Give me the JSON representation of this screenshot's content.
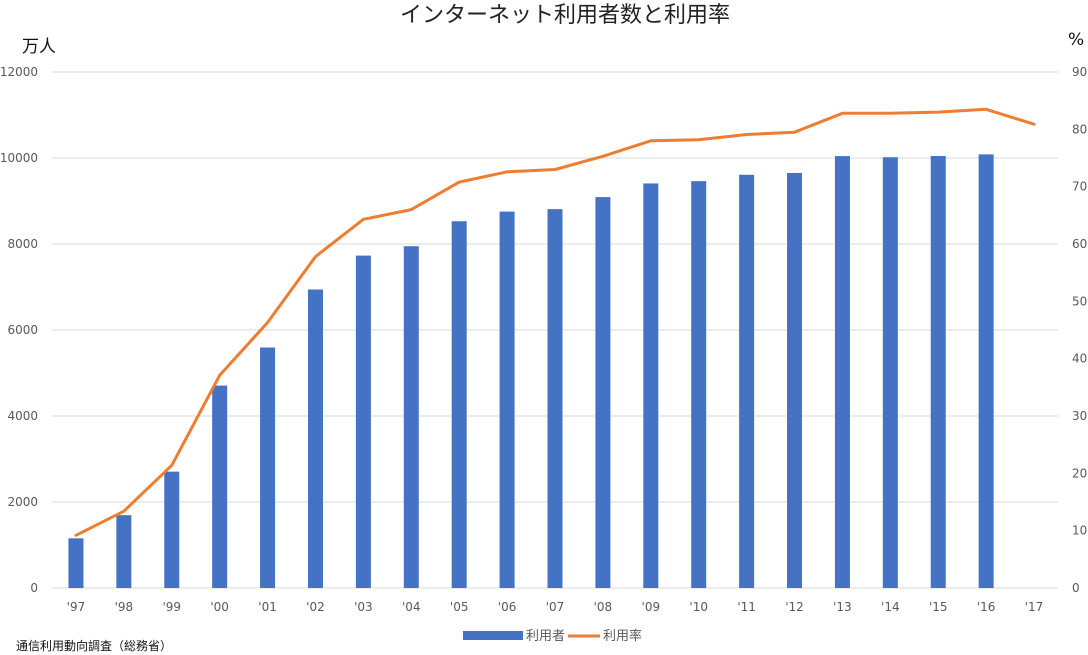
{
  "chart_data": {
    "type": "bar",
    "title": "インターネット利用者数と利用率",
    "xlabel": "",
    "ylabel": "万人",
    "y2label": "%",
    "source_note": "通信利用動向調査（総務省）",
    "categories": [
      "'97",
      "'98",
      "'99",
      "'00",
      "'01",
      "'02",
      "'03",
      "'04",
      "'05",
      "'06",
      "'07",
      "'08",
      "'09",
      "'10",
      "'11",
      "'12",
      "'13",
      "'14",
      "'15",
      "'16",
      "'17"
    ],
    "ylim": [
      0,
      12000
    ],
    "y2lim": [
      0,
      90
    ],
    "y_ticks": [
      "0",
      "2000",
      "4000",
      "6000",
      "8000",
      "10000",
      "12000"
    ],
    "y2_ticks": [
      "0",
      "10",
      "20",
      "30",
      "40",
      "50",
      "60",
      "70",
      "80",
      "90"
    ],
    "grid": true,
    "legend_position": "bottom",
    "series": [
      {
        "name": "利用者",
        "type": "bar",
        "axis": "left",
        "color": "#4472C4",
        "values": [
          1155,
          1694,
          2706,
          4708,
          5593,
          6942,
          7730,
          7948,
          8529,
          8754,
          8811,
          9091,
          9408,
          9462,
          9610,
          9652,
          10044,
          10018,
          10046,
          10084,
          null
        ]
      },
      {
        "name": "利用率",
        "type": "line",
        "axis": "right",
        "color": "#ED7D31",
        "values": [
          9.2,
          13.4,
          21.4,
          37.1,
          46.3,
          57.8,
          64.3,
          66.0,
          70.8,
          72.6,
          73.0,
          75.3,
          78.0,
          78.2,
          79.1,
          79.5,
          82.8,
          82.8,
          83.0,
          83.5,
          80.9
        ]
      }
    ]
  }
}
